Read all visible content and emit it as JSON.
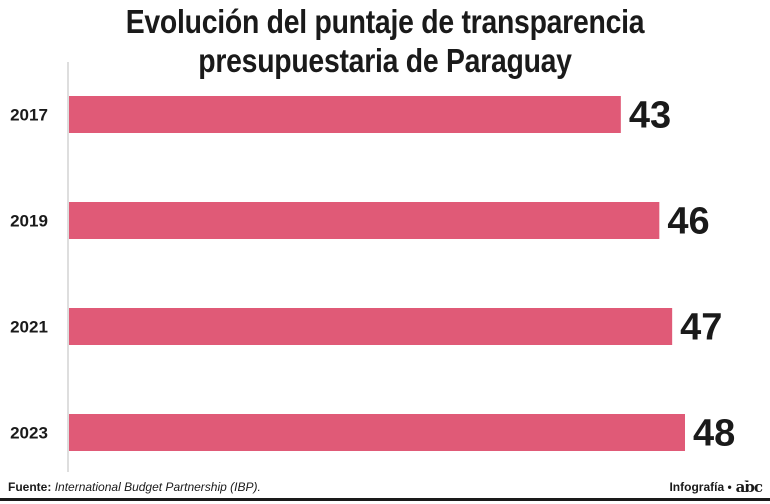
{
  "chart_data": {
    "type": "bar",
    "orientation": "horizontal",
    "title_lines": [
      "Evolución del puntaje de transparencia",
      "presupuestaria de Paraguay"
    ],
    "categories": [
      "2017",
      "2019",
      "2021",
      "2023"
    ],
    "values": [
      43,
      46,
      47,
      48
    ],
    "xlim": [
      0,
      50
    ],
    "bar_color": "#e05a77",
    "label_color": "#1a1a1a",
    "xlabel": "",
    "ylabel": ""
  },
  "footer": {
    "source_label": "Fuente:",
    "source_text": "International Budget Partnership (IBP).",
    "credit_label": "Infografía •",
    "logo_text": "abc"
  }
}
